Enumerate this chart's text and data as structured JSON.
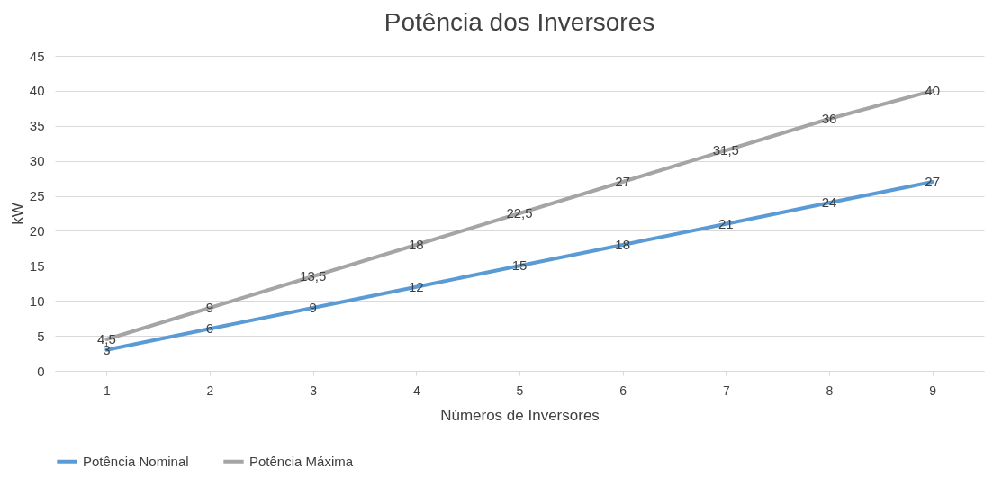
{
  "chart_data": {
    "type": "line",
    "title": "Potência dos Inversores",
    "xlabel": "Números de Inversores",
    "ylabel": "kW",
    "categories": [
      "1",
      "2",
      "3",
      "4",
      "5",
      "6",
      "7",
      "8",
      "9"
    ],
    "series": [
      {
        "name": "Potência Nominal",
        "color": "#5b9bd5",
        "values": [
          3,
          6,
          9,
          12,
          15,
          18,
          21,
          24,
          27
        ],
        "value_labels": [
          "3",
          "6",
          "9",
          "12",
          "15",
          "18",
          "21",
          "24",
          "27"
        ]
      },
      {
        "name": "Potência Máxima",
        "color": "#a5a5a5",
        "values": [
          4.5,
          9,
          13.5,
          18,
          22.5,
          27,
          31.5,
          36,
          40
        ],
        "value_labels": [
          "4,5",
          "9",
          "13,5",
          "18",
          "22,5",
          "27",
          "31,5",
          "36",
          "40"
        ]
      }
    ],
    "ylim": [
      0,
      45
    ],
    "yticks": [
      0,
      5,
      10,
      15,
      20,
      25,
      30,
      35,
      40,
      45
    ],
    "grid": "y",
    "legend": "bottom",
    "marker": "none",
    "line_style": "solid"
  }
}
